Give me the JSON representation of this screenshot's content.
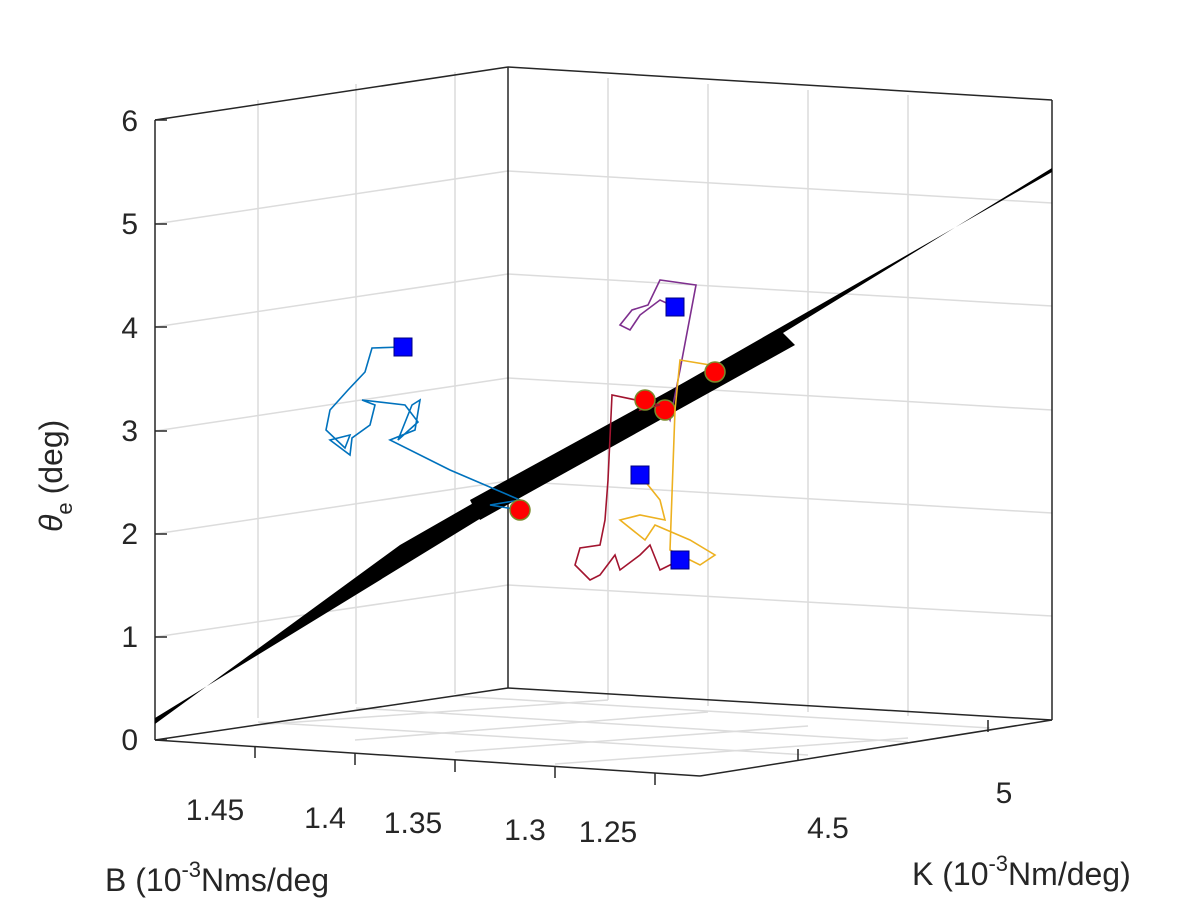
{
  "chart_data": {
    "type": "scatter3d",
    "title": "",
    "axes": {
      "x": {
        "label_main": "B (10",
        "label_sup": "-3",
        "label_unit": "Nms/deg",
        "ticks": [
          "1.45",
          "1.4",
          "1.35",
          "1.3",
          "1.25"
        ]
      },
      "y": {
        "label_main": "K (10",
        "label_sup": "-3",
        "label_unit": "Nm/deg)",
        "ticks": [
          "4.5",
          "5"
        ]
      },
      "z": {
        "label_symbol": "θ",
        "label_sub": "e",
        "label_unit": "(deg)",
        "ticks": [
          "0",
          "1",
          "2",
          "3",
          "4",
          "5",
          "6"
        ],
        "range": [
          0,
          6
        ]
      }
    },
    "grid": true,
    "surface": {
      "name": "",
      "color": "#000000"
    },
    "series": [
      {
        "color": "#0072BD",
        "start": {
          "B": 1.38,
          "K": 4.3,
          "theta": 3.8
        },
        "end": {
          "B": 1.31,
          "K": 4.3,
          "theta": 2.3
        },
        "path": [
          [
            403,
            347
          ],
          [
            372,
            348
          ],
          [
            365,
            372
          ],
          [
            348,
            390
          ],
          [
            330,
            410
          ],
          [
            326,
            430
          ],
          [
            345,
            448
          ],
          [
            350,
            435
          ],
          [
            330,
            440
          ],
          [
            350,
            455
          ],
          [
            352,
            438
          ],
          [
            370,
            425
          ],
          [
            375,
            405
          ],
          [
            362,
            400
          ],
          [
            405,
            405
          ],
          [
            418,
            422
          ],
          [
            398,
            440
          ],
          [
            412,
            405
          ],
          [
            420,
            400
          ],
          [
            415,
            430
          ],
          [
            390,
            440
          ],
          [
            450,
            470
          ],
          [
            520,
            500
          ],
          [
            490,
            505
          ],
          [
            520,
            510
          ]
        ]
      },
      {
        "color": "#7E2F8E",
        "start": {
          "B": 1.26,
          "K": 4.6,
          "theta": 4.2
        },
        "end": {
          "B": 1.27,
          "K": 4.6,
          "theta": 3.2
        },
        "path": [
          [
            675,
            307
          ],
          [
            660,
            300
          ],
          [
            640,
            315
          ],
          [
            630,
            330
          ],
          [
            620,
            325
          ],
          [
            632,
            310
          ],
          [
            648,
            305
          ],
          [
            660,
            280
          ],
          [
            696,
            285
          ],
          [
            680,
            370
          ],
          [
            670,
            420
          ],
          [
            665,
            410
          ]
        ]
      },
      {
        "color": "#EDB120",
        "start": {
          "B": 1.29,
          "K": 4.7,
          "theta": 2.6
        },
        "end": {
          "B": 1.25,
          "K": 4.8,
          "theta": 3.6
        },
        "path": [
          [
            640,
            475
          ],
          [
            660,
            500
          ],
          [
            665,
            520
          ],
          [
            640,
            515
          ],
          [
            620,
            520
          ],
          [
            645,
            540
          ],
          [
            655,
            525
          ],
          [
            690,
            540
          ],
          [
            715,
            555
          ],
          [
            700,
            565
          ],
          [
            670,
            550
          ],
          [
            675,
            410
          ],
          [
            680,
            360
          ],
          [
            710,
            365
          ],
          [
            715,
            372
          ]
        ]
      },
      {
        "color": "#A2142F",
        "start": {
          "B": 1.25,
          "K": 4.6,
          "theta": 1.8
        },
        "end": {
          "B": 1.27,
          "K": 4.5,
          "theta": 3.2
        },
        "path": [
          [
            680,
            560
          ],
          [
            660,
            570
          ],
          [
            650,
            545
          ],
          [
            640,
            555
          ],
          [
            620,
            570
          ],
          [
            615,
            555
          ],
          [
            600,
            575
          ],
          [
            590,
            580
          ],
          [
            575,
            565
          ],
          [
            580,
            548
          ],
          [
            600,
            545
          ],
          [
            605,
            520
          ],
          [
            608,
            480
          ],
          [
            612,
            395
          ],
          [
            660,
            405
          ],
          [
            640,
            410
          ],
          [
            645,
            400
          ]
        ]
      }
    ],
    "end_markers_color": "#FF0000",
    "start_markers_color": "#0000FF"
  }
}
